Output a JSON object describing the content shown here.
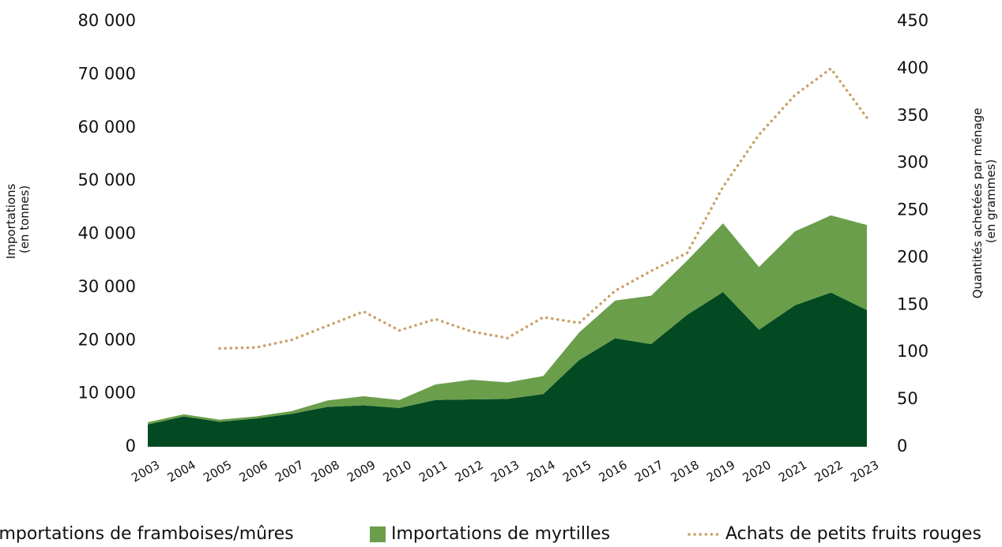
{
  "chart_data": {
    "type": "stacked_area_line",
    "categories": [
      "2003",
      "2004",
      "2005",
      "2006",
      "2007",
      "2008",
      "2009",
      "2010",
      "2011",
      "2012",
      "2013",
      "2014",
      "2015",
      "2016",
      "2017",
      "2018",
      "2019",
      "2020",
      "2021",
      "2022",
      "2023"
    ],
    "series": [
      {
        "name": "Importations de framboises/mûres",
        "color": "#034a22",
        "values": [
          4200,
          5700,
          4700,
          5300,
          6200,
          7500,
          7800,
          7300,
          8800,
          8900,
          9000,
          9900,
          16300,
          20400,
          19300,
          24800,
          29100,
          22000,
          26600,
          29000,
          25700
        ]
      },
      {
        "name": "Importations de myrtilles",
        "color": "#6a9e4b",
        "values": [
          400,
          400,
          400,
          400,
          500,
          1200,
          1700,
          1500,
          2900,
          3700,
          3100,
          3400,
          5200,
          7100,
          9100,
          10200,
          12900,
          11800,
          13900,
          14500,
          16000
        ]
      },
      {
        "name": "Achats de petits fruits rouges",
        "color": "#c8a165",
        "axis": "y2",
        "style": "dotted",
        "values": [
          null,
          null,
          104,
          105,
          113,
          128,
          143,
          123,
          135,
          122,
          115,
          137,
          131,
          165,
          186,
          205,
          275,
          330,
          372,
          400,
          348
        ]
      }
    ],
    "y_label": [
      "Importations",
      "(en tonnes)"
    ],
    "y2_label": [
      "Quantités achetées par ménage",
      "(en grammes)"
    ],
    "ylim": [
      0,
      80000
    ],
    "yticks": [
      0,
      {
        "value": 10000,
        "label": "10 000"
      },
      {
        "value": 20000,
        "label": "20 000"
      },
      {
        "value": 30000,
        "label": "30 000"
      },
      {
        "value": 40000,
        "label": "40 000"
      },
      {
        "value": 50000,
        "label": "50 000"
      },
      {
        "value": 60000,
        "label": "60 000"
      },
      {
        "value": 70000,
        "label": "70 000"
      },
      {
        "value": 80000,
        "label": "80 000"
      }
    ],
    "y2lim": [
      0,
      450
    ],
    "y2ticks": [
      0,
      50,
      100,
      150,
      200,
      250,
      300,
      350,
      400,
      450
    ],
    "grid": false,
    "legend": "bottom"
  }
}
